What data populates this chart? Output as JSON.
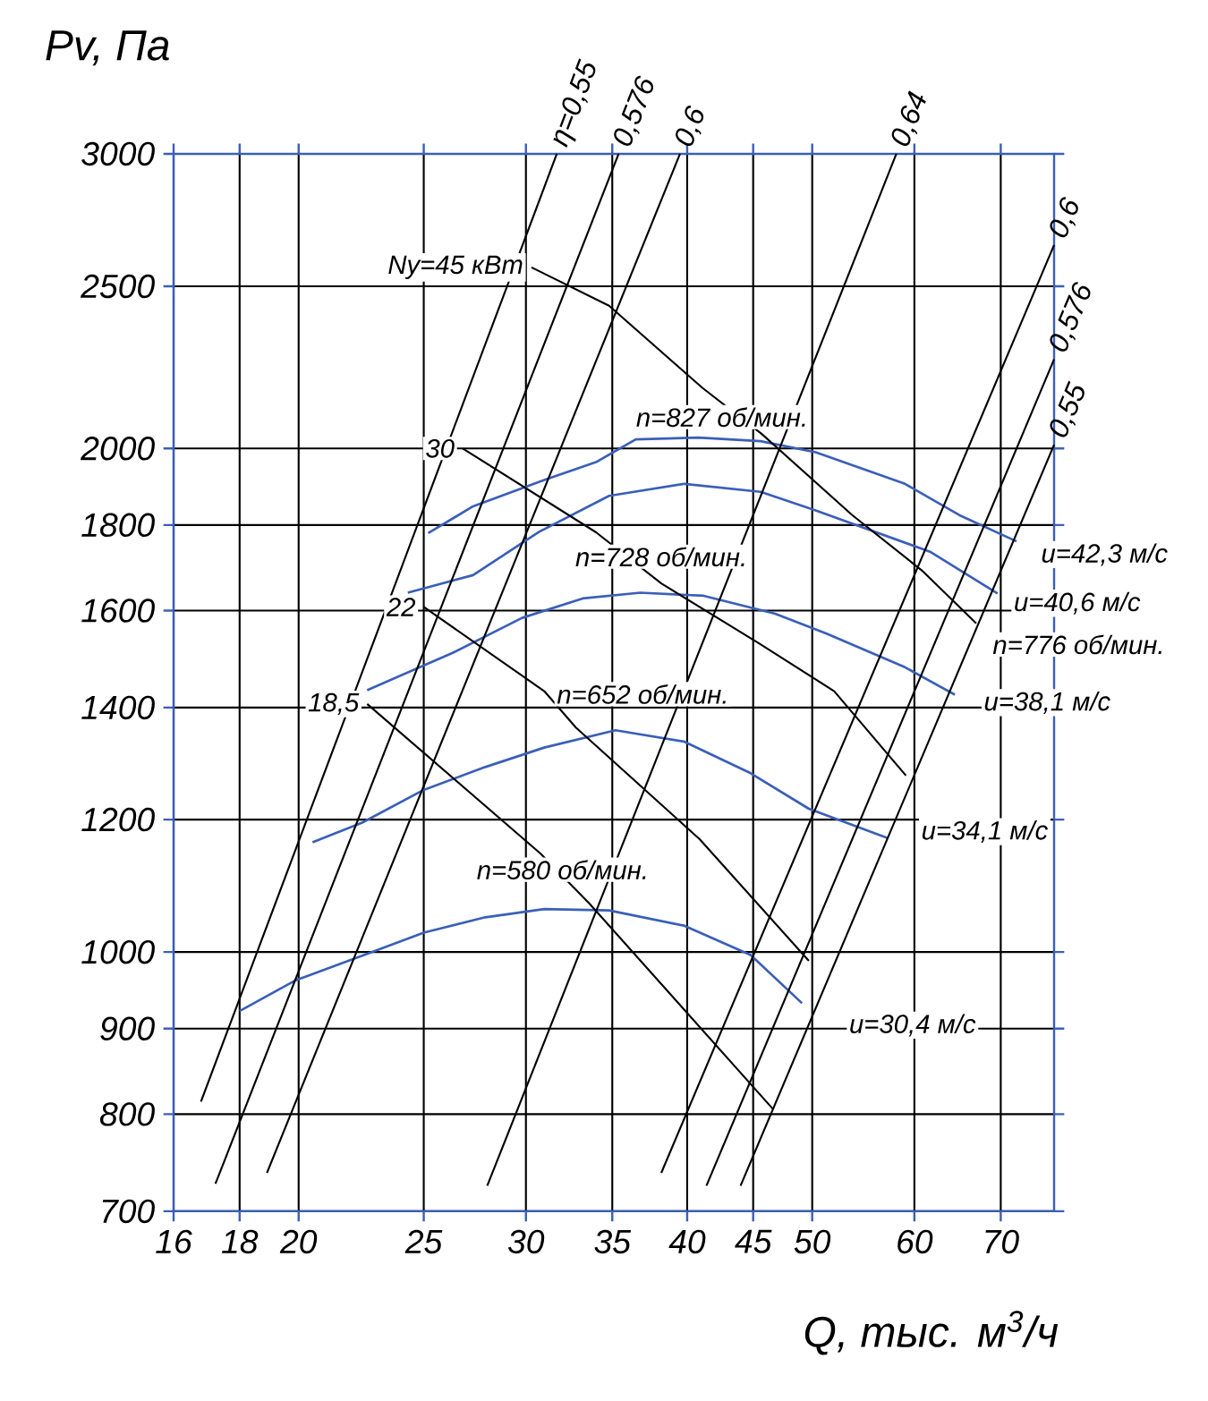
{
  "chart_data": {
    "type": "line",
    "xlabel": "Q, тыс. м$^{3}$/ч",
    "ylabel": "Pv, Па",
    "log": "xy",
    "grid": true,
    "marker": "none",
    "xlim": [
      16,
      77
    ],
    "ylim": [
      700,
      3000
    ],
    "xticks": [
      16,
      18,
      20,
      25,
      30,
      35,
      40,
      45,
      50,
      60,
      70
    ],
    "yticks": [
      700,
      800,
      900,
      1000,
      1200,
      1400,
      1600,
      1800,
      2000,
      2500,
      3000
    ],
    "series": [
      {
        "color": "#3a5fb8",
        "x": [
          25.2,
          27.3,
          31,
          34,
          36.5,
          40.8,
          45.6,
          50.3,
          59,
          65,
          72
        ],
        "values": [
          1780,
          1847,
          1915,
          1963,
          2025,
          2030,
          2020,
          1990,
          1905,
          1825,
          1760
        ]
      },
      {
        "color": "#3a5fb8",
        "x": [
          24.3,
          27.3,
          30.7,
          34.8,
          39.8,
          45.6,
          50.3,
          61.7,
          69.6
        ],
        "values": [
          1640,
          1680,
          1783,
          1874,
          1905,
          1884,
          1837,
          1735,
          1638
        ]
      },
      {
        "color": "#3a5fb8",
        "x": [
          22.6,
          26.3,
          29.8,
          33.2,
          36.8,
          41.2,
          46.8,
          51.3,
          59,
          64.5
        ],
        "values": [
          1434,
          1509,
          1584,
          1627,
          1640,
          1633,
          1593,
          1550,
          1480,
          1425
        ]
      },
      {
        "color": "#3a5fb8",
        "x": [
          20.5,
          22.4,
          25,
          27.9,
          31,
          35.2,
          39.8,
          44.8,
          49.7,
          57.2
        ],
        "values": [
          1163,
          1195,
          1250,
          1290,
          1325,
          1357,
          1336,
          1279,
          1218,
          1170
        ]
      },
      {
        "color": "#3a5fb8",
        "x": [
          18,
          19.9,
          22.4,
          25,
          27.9,
          31,
          34.8,
          39.8,
          44.8,
          49.1
        ],
        "values": [
          922,
          962,
          995,
          1027,
          1049,
          1061,
          1059,
          1037,
          996,
          932
        ]
      },
      {
        "name": "η=0,55",
        "color": "#000000",
        "x": [
          16.8,
          31.7
        ],
        "values": [
          814,
          3000
        ]
      },
      {
        "name": "0,576",
        "color": "#000000",
        "x": [
          17.24,
          35.4
        ],
        "values": [
          727,
          3000
        ]
      },
      {
        "name": "0,6",
        "color": "#000000",
        "x": [
          18.9,
          39.5
        ],
        "values": [
          738,
          3000
        ]
      },
      {
        "name": "0,64",
        "color": "#000000",
        "x": [
          28,
          58.1
        ],
        "values": [
          725,
          3000
        ]
      },
      {
        "name": "0,6",
        "color": "#000000",
        "x": [
          38.2,
          77
        ],
        "values": [
          738,
          2646
        ]
      },
      {
        "name": "0,576",
        "color": "#000000",
        "x": [
          41.4,
          77
        ],
        "values": [
          725,
          2261
        ]
      },
      {
        "name": "0,55",
        "color": "#000000",
        "x": [
          44,
          77
        ],
        "values": [
          725,
          2010
        ]
      },
      {
        "name": "Ny=45 кВт",
        "color": "#000000",
        "x": [
          30.3,
          34.8,
          41.1,
          45.7,
          53.7,
          60.8,
          67.0
        ],
        "values": [
          2566,
          2434,
          2174,
          2040,
          1825,
          1691,
          1572
        ]
      },
      {
        "name": "30",
        "color": "#000000",
        "x": [
          26.8,
          34.0,
          38.2,
          45.5,
          52.0,
          59.1
        ],
        "values": [
          2000,
          1782,
          1661,
          1529,
          1432,
          1275
        ]
      },
      {
        "name": "22",
        "color": "#000000",
        "x": [
          25,
          31.0,
          32.8,
          40.9,
          49.7
        ],
        "values": [
          1608,
          1432,
          1362,
          1168,
          988
        ]
      },
      {
        "name": "18,5",
        "color": "#000000",
        "x": [
          22.6,
          30.8,
          33.6,
          46.6
        ],
        "values": [
          1407,
          1145,
          1069,
          806
        ]
      }
    ],
    "annotations": [
      "n=827 об/мин.",
      "n=728 об/мин.",
      "n=652 об/мин.",
      "n=580 об/мин.",
      "n=776 об/мин.",
      "u=42,3 м/с",
      "u=40,6 м/с",
      "u=38,1 м/с",
      "u=34,1 м/с",
      "u=30,4 м/с"
    ]
  }
}
